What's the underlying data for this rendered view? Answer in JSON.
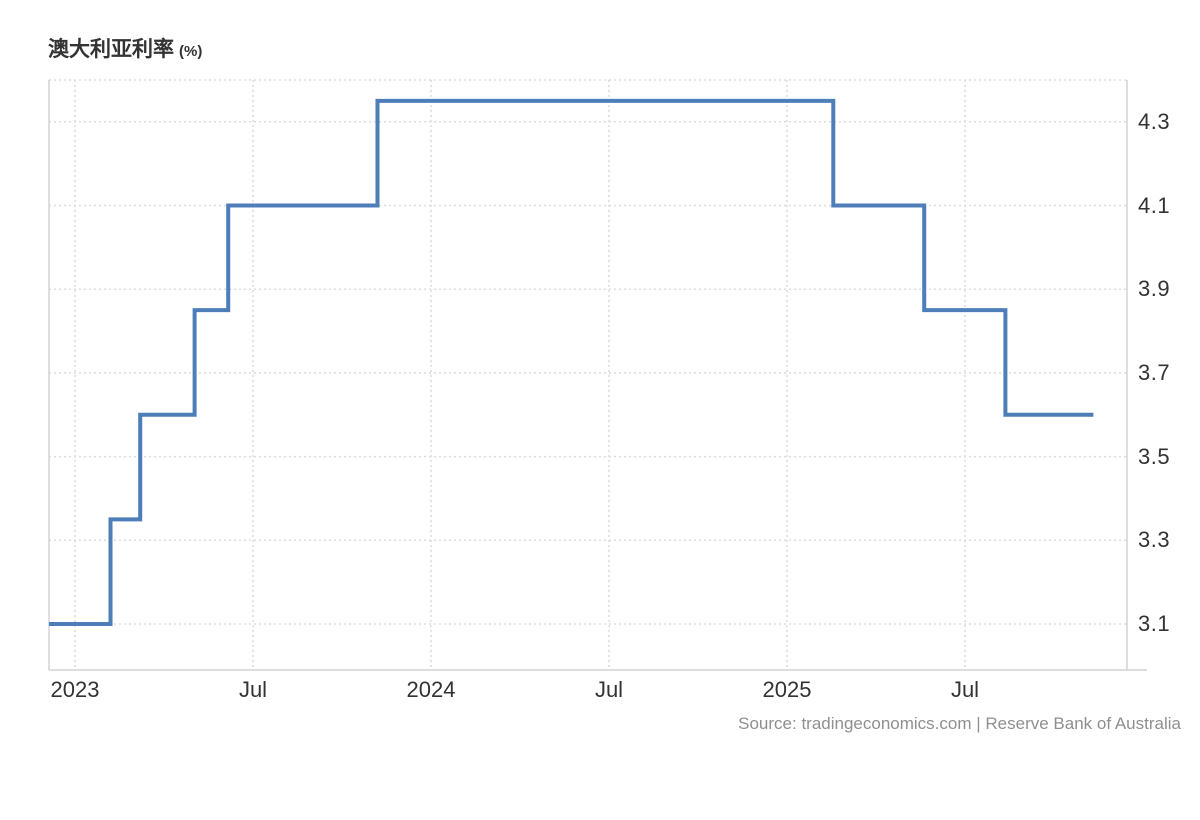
{
  "header": {
    "title": "澳大利亚利率",
    "unit": "(%)"
  },
  "source": {
    "text": "Source: tradingeconomics.com | Reserve Bank of Australia"
  },
  "colors": {
    "line": "#4d7eb8",
    "grid": "#dcdcdc",
    "axis": "#d4d4d4",
    "tick_text": "#333333",
    "title_text": "#333333",
    "source_text": "#8f8f8f"
  },
  "chart_data": {
    "type": "line",
    "step": true,
    "title": "澳大利亚利率 (%)",
    "ylabel": "",
    "xlabel": "",
    "grid": true,
    "legend": "none",
    "ylim": [
      2.99,
      4.4
    ],
    "x_start": "2022-12-06",
    "x_end": "2025-11-11",
    "steps": [
      {
        "date": "2022-12-06",
        "value": 3.1
      },
      {
        "date": "2023-02-07",
        "value": 3.35
      },
      {
        "date": "2023-03-07",
        "value": 3.6
      },
      {
        "date": "2023-05-02",
        "value": 3.85
      },
      {
        "date": "2023-06-06",
        "value": 4.1
      },
      {
        "date": "2023-11-07",
        "value": 4.35
      },
      {
        "date": "2025-02-18",
        "value": 4.1
      },
      {
        "date": "2025-05-20",
        "value": 3.85
      },
      {
        "date": "2025-08-12",
        "value": 3.6
      }
    ],
    "y_ticks": [
      {
        "value": 4.3,
        "label": "4.3"
      },
      {
        "value": 4.1,
        "label": "4.1"
      },
      {
        "value": 3.9,
        "label": "3.9"
      },
      {
        "value": 3.7,
        "label": "3.7"
      },
      {
        "value": 3.5,
        "label": "3.5"
      },
      {
        "value": 3.3,
        "label": "3.3"
      },
      {
        "value": 3.1,
        "label": "3.1"
      }
    ],
    "x_ticks": [
      {
        "date": "2023-01-01",
        "label": "2023"
      },
      {
        "date": "2023-07-01",
        "label": "Jul"
      },
      {
        "date": "2024-01-01",
        "label": "2024"
      },
      {
        "date": "2024-07-01",
        "label": "Jul"
      },
      {
        "date": "2025-01-01",
        "label": "2025"
      },
      {
        "date": "2025-07-01",
        "label": "Jul"
      }
    ]
  }
}
